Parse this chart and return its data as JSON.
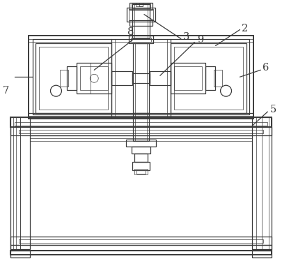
{
  "bg_color": "#ffffff",
  "line_color": "#3a3a3a",
  "lw_thick": 1.4,
  "lw_med": 0.9,
  "lw_thin": 0.5,
  "label_fontsize": 10.5,
  "fig_w": 4.05,
  "fig_h": 3.74,
  "dpi": 100
}
